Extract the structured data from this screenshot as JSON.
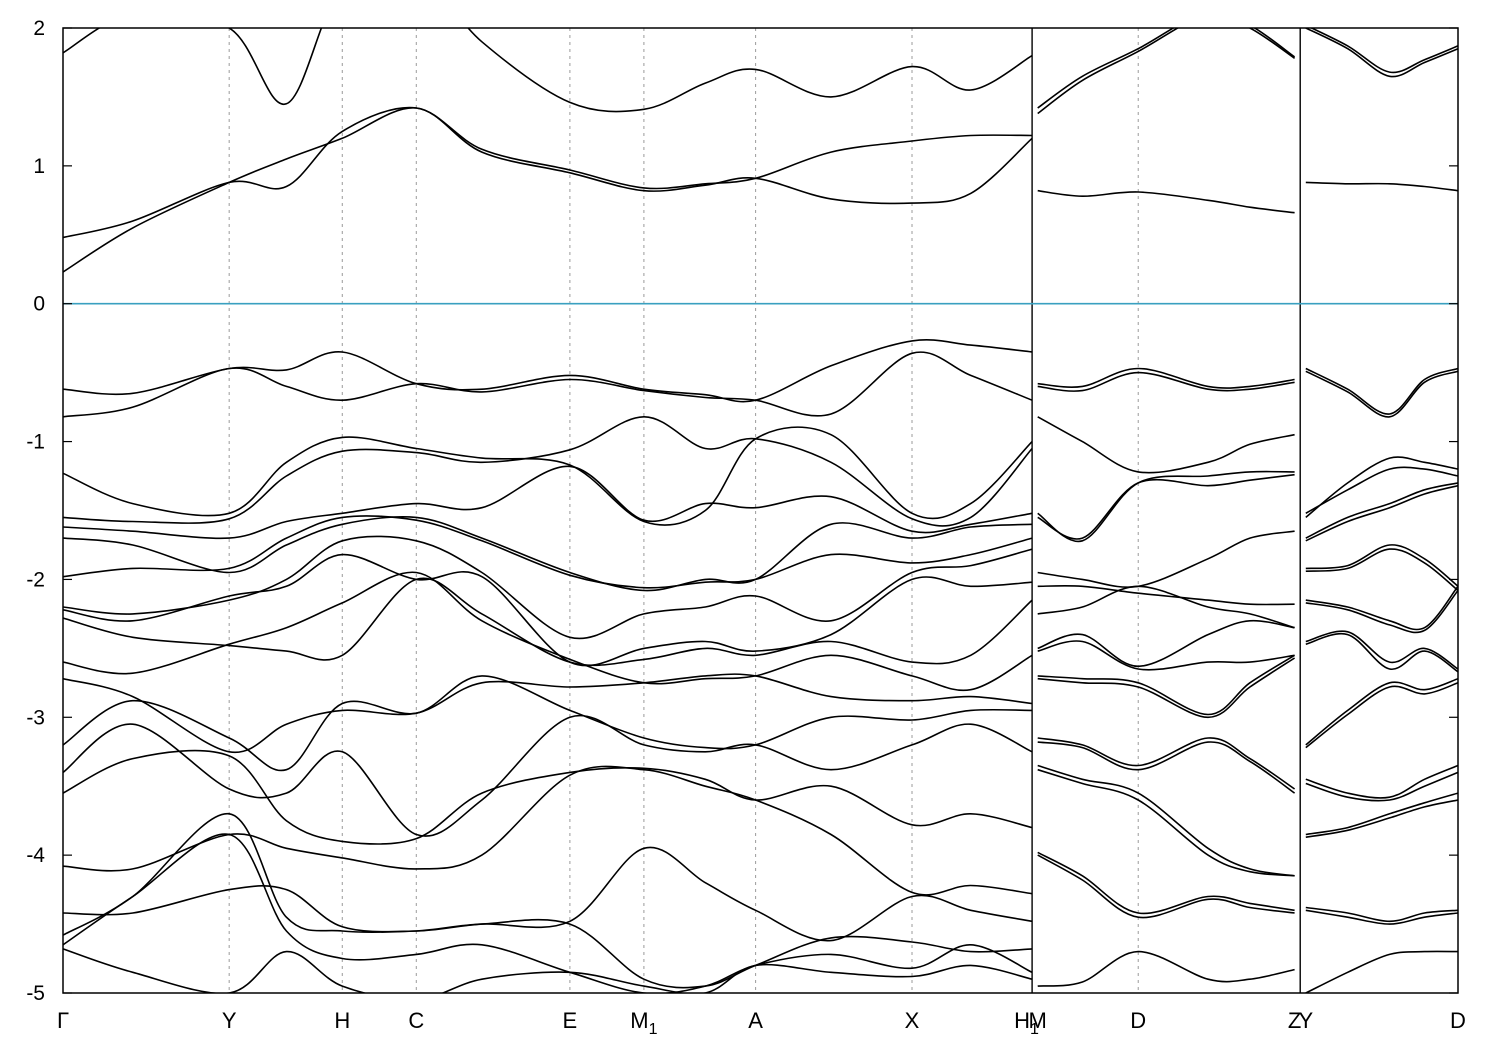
{
  "chart_data": {
    "type": "line",
    "title": "",
    "xlabel": "",
    "ylabel": "",
    "ylim": [
      -5,
      2
    ],
    "y_ticks": [
      -5,
      -4,
      -3,
      -2,
      -1,
      0,
      1,
      2
    ],
    "fermi_level": 0,
    "fermi_color": "#3aa0c0",
    "x_ticks": [
      {
        "label": "Γ",
        "sub": "",
        "x": 0
      },
      {
        "label": "Y",
        "sub": "",
        "x": 1.19
      },
      {
        "label": "H",
        "sub": "",
        "x": 2.0
      },
      {
        "label": "C",
        "sub": "",
        "x": 2.53
      },
      {
        "label": "E",
        "sub": "",
        "x": 3.63
      },
      {
        "label": "M",
        "sub": "1",
        "x": 4.16
      },
      {
        "label": "A",
        "sub": "",
        "x": 4.96
      },
      {
        "label": "X",
        "sub": "",
        "x": 6.08
      },
      {
        "label": "H",
        "sub": "1",
        "x": 6.9
      },
      {
        "label": "M",
        "sub": "",
        "x": 6.98
      },
      {
        "label": "D",
        "sub": "",
        "x": 7.7
      },
      {
        "label": "Z",
        "sub": "",
        "x": 8.82
      },
      {
        "label": "Y",
        "sub": "",
        "x": 8.9
      },
      {
        "label": "D",
        "sub": "",
        "x": 9.99
      }
    ],
    "xlim": [
      0,
      9.99
    ],
    "segment_breaks": [
      6.94,
      8.86
    ],
    "segments": [
      {
        "x": [
          0,
          0.5,
          1.19,
          1.6,
          2.0,
          2.53,
          3.0,
          3.63,
          4.16,
          4.6,
          4.96,
          5.5,
          6.08,
          6.5,
          6.94
        ],
        "series": [
          {
            "values": [
              0.23,
              0.55,
              0.88,
              1.05,
              1.2,
              1.42,
              1.1,
              0.95,
              0.82,
              0.86,
              0.91,
              0.76,
              0.73,
              0.8,
              1.2
            ]
          },
          {
            "values": [
              0.48,
              0.6,
              0.88,
              0.85,
              1.25,
              1.42,
              1.12,
              0.97,
              0.84,
              0.87,
              0.91,
              1.1,
              1.18,
              1.22,
              1.22
            ]
          },
          {
            "values": [
              1.82,
              2.1,
              2.0,
              1.45,
              2.3,
              2.4,
              1.9,
              1.46,
              1.41,
              1.6,
              1.7,
              1.5,
              1.72,
              1.55,
              1.8
            ]
          },
          {
            "values": [
              -0.62,
              -0.65,
              -0.47,
              -0.48,
              -0.35,
              -0.58,
              -0.62,
              -0.52,
              -0.62,
              -0.66,
              -0.7,
              -0.45,
              -0.27,
              -0.3,
              -0.35
            ]
          },
          {
            "values": [
              -0.82,
              -0.75,
              -0.47,
              -0.6,
              -0.7,
              -0.58,
              -0.64,
              -0.55,
              -0.63,
              -0.68,
              -0.7,
              -0.8,
              -0.36,
              -0.52,
              -0.7
            ]
          },
          {
            "values": [
              -1.23,
              -1.45,
              -1.52,
              -1.15,
              -0.97,
              -1.05,
              -1.12,
              -1.17,
              -1.58,
              -1.5,
              -0.98,
              -0.95,
              -1.52,
              -1.45,
              -1.0
            ]
          },
          {
            "values": [
              -1.55,
              -1.58,
              -1.56,
              -1.25,
              -1.07,
              -1.08,
              -1.15,
              -1.06,
              -0.82,
              -1.05,
              -0.98,
              -1.15,
              -1.56,
              -1.55,
              -1.05
            ]
          },
          {
            "values": [
              -1.62,
              -1.65,
              -1.7,
              -1.58,
              -1.52,
              -1.45,
              -1.48,
              -1.18,
              -1.57,
              -1.45,
              -1.48,
              -1.4,
              -1.65,
              -1.6,
              -1.52
            ]
          },
          {
            "values": [
              -1.7,
              -1.75,
              -1.95,
              -1.75,
              -1.6,
              -1.55,
              -1.7,
              -1.95,
              -2.08,
              -2.0,
              -2.0,
              -1.6,
              -1.7,
              -1.62,
              -1.6
            ]
          },
          {
            "values": [
              -1.98,
              -1.92,
              -1.92,
              -1.7,
              -1.55,
              -1.57,
              -1.72,
              -1.97,
              -2.06,
              -2.02,
              -2.0,
              -1.82,
              -1.88,
              -1.82,
              -1.7
            ]
          },
          {
            "values": [
              -2.2,
              -2.25,
              -2.15,
              -2.0,
              -1.72,
              -1.72,
              -1.95,
              -2.42,
              -2.25,
              -2.2,
              -2.12,
              -2.3,
              -1.95,
              -1.9,
              -1.78
            ]
          },
          {
            "values": [
              -2.22,
              -2.3,
              -2.12,
              -2.05,
              -1.82,
              -2.0,
              -1.98,
              -2.6,
              -2.5,
              -2.45,
              -2.52,
              -2.4,
              -2.0,
              -2.05,
              -2.02
            ]
          },
          {
            "values": [
              -2.28,
              -2.42,
              -2.48,
              -2.52,
              -2.55,
              -2.0,
              -2.25,
              -2.6,
              -2.58,
              -2.5,
              -2.55,
              -2.45,
              -2.6,
              -2.55,
              -2.15
            ]
          },
          {
            "values": [
              -2.6,
              -2.68,
              -2.47,
              -2.35,
              -2.17,
              -1.95,
              -2.3,
              -2.58,
              -2.75,
              -2.72,
              -2.7,
              -2.55,
              -2.7,
              -2.8,
              -2.55
            ]
          },
          {
            "values": [
              -2.72,
              -2.85,
              -3.25,
              -3.05,
              -2.95,
              -2.97,
              -2.75,
              -2.78,
              -2.75,
              -2.7,
              -2.7,
              -2.85,
              -2.88,
              -2.85,
              -2.9
            ]
          },
          {
            "values": [
              -3.2,
              -2.88,
              -3.15,
              -3.38,
              -2.9,
              -2.97,
              -2.7,
              -2.95,
              -3.15,
              -3.22,
              -3.2,
              -3.0,
              -3.02,
              -2.95,
              -2.95
            ]
          },
          {
            "values": [
              -3.4,
              -3.05,
              -3.52,
              -3.55,
              -3.25,
              -3.85,
              -3.6,
              -3.0,
              -3.2,
              -3.25,
              -3.2,
              -3.38,
              -3.2,
              -3.05,
              -3.25
            ]
          },
          {
            "values": [
              -3.55,
              -3.3,
              -3.28,
              -3.75,
              -3.9,
              -3.88,
              -3.55,
              -3.4,
              -3.37,
              -3.45,
              -3.6,
              -3.5,
              -3.78,
              -3.7,
              -3.8
            ]
          },
          {
            "values": [
              -4.08,
              -4.1,
              -3.85,
              -3.95,
              -4.02,
              -4.1,
              -4.0,
              -3.42,
              -3.38,
              -3.5,
              -3.6,
              -3.85,
              -4.27,
              -4.22,
              -4.28
            ]
          },
          {
            "values": [
              -4.42,
              -4.42,
              -4.25,
              -4.25,
              -4.52,
              -4.55,
              -4.5,
              -4.48,
              -3.95,
              -4.2,
              -4.4,
              -4.62,
              -4.3,
              -4.4,
              -4.48
            ]
          },
          {
            "values": [
              -4.58,
              -4.3,
              -3.7,
              -4.45,
              -4.55,
              -4.55,
              -4.5,
              -4.5,
              -4.9,
              -4.95,
              -4.8,
              -4.6,
              -4.63,
              -4.7,
              -4.68
            ]
          },
          {
            "values": [
              -4.65,
              -4.3,
              -3.85,
              -4.55,
              -4.75,
              -4.72,
              -4.65,
              -4.85,
              -5.0,
              -4.95,
              -4.8,
              -4.72,
              -4.82,
              -4.65,
              -4.85
            ]
          },
          {
            "values": [
              -4.68,
              -4.85,
              -5.0,
              -4.7,
              -4.95,
              -5.05,
              -4.9,
              -4.85,
              -4.95,
              -5.0,
              -4.8,
              -4.85,
              -4.88,
              -4.8,
              -4.9
            ]
          }
        ]
      },
      {
        "x": [
          6.98,
          7.3,
          7.7,
          8.2,
          8.5,
          8.82
        ],
        "series": [
          {
            "values": [
              0.82,
              0.78,
              0.81,
              0.75,
              0.7,
              0.66
            ]
          },
          {
            "values": [
              1.38,
              1.62,
              1.83,
              2.1,
              2.0,
              1.78
            ]
          },
          {
            "values": [
              1.42,
              1.65,
              1.85,
              2.12,
              2.02,
              1.79
            ]
          },
          {
            "values": [
              -0.58,
              -0.6,
              -0.47,
              -0.6,
              -0.6,
              -0.55
            ]
          },
          {
            "values": [
              -0.6,
              -0.63,
              -0.5,
              -0.62,
              -0.62,
              -0.57
            ]
          },
          {
            "values": [
              -0.82,
              -1.0,
              -1.22,
              -1.15,
              -1.02,
              -0.95
            ]
          },
          {
            "values": [
              -1.52,
              -1.72,
              -1.3,
              -1.25,
              -1.22,
              -1.22
            ]
          },
          {
            "values": [
              -1.55,
              -1.7,
              -1.3,
              -1.32,
              -1.28,
              -1.24
            ]
          },
          {
            "values": [
              -1.95,
              -2.0,
              -2.05,
              -1.85,
              -1.7,
              -1.65
            ]
          },
          {
            "values": [
              -2.05,
              -2.05,
              -2.1,
              -2.15,
              -2.18,
              -2.18
            ]
          },
          {
            "values": [
              -2.25,
              -2.2,
              -2.05,
              -2.2,
              -2.25,
              -2.35
            ]
          },
          {
            "values": [
              -2.5,
              -2.4,
              -2.63,
              -2.4,
              -2.3,
              -2.35
            ]
          },
          {
            "values": [
              -2.52,
              -2.45,
              -2.65,
              -2.6,
              -2.6,
              -2.55
            ]
          },
          {
            "values": [
              -2.7,
              -2.72,
              -2.75,
              -2.98,
              -2.75,
              -2.55
            ]
          },
          {
            "values": [
              -2.72,
              -2.75,
              -2.78,
              -3.0,
              -2.78,
              -2.57
            ]
          },
          {
            "values": [
              -3.15,
              -3.2,
              -3.35,
              -3.15,
              -3.3,
              -3.52
            ]
          },
          {
            "values": [
              -3.18,
              -3.22,
              -3.38,
              -3.18,
              -3.32,
              -3.55
            ]
          },
          {
            "values": [
              -3.35,
              -3.45,
              -3.55,
              -3.95,
              -4.1,
              -4.15
            ]
          },
          {
            "values": [
              -3.38,
              -3.48,
              -3.6,
              -4.0,
              -4.12,
              -4.15
            ]
          },
          {
            "values": [
              -3.98,
              -4.15,
              -4.42,
              -4.3,
              -4.35,
              -4.4
            ]
          },
          {
            "values": [
              -4.0,
              -4.18,
              -4.45,
              -4.32,
              -4.38,
              -4.42
            ]
          },
          {
            "values": [
              -4.95,
              -4.92,
              -4.7,
              -4.9,
              -4.9,
              -4.83
            ]
          }
        ]
      },
      {
        "x": [
          8.9,
          9.2,
          9.5,
          9.75,
          9.99
        ],
        "series": [
          {
            "values": [
              0.88,
              0.87,
              0.87,
              0.85,
              0.82
            ]
          },
          {
            "values": [
              2.0,
              1.85,
              1.65,
              1.75,
              1.85
            ]
          },
          {
            "values": [
              2.02,
              1.87,
              1.68,
              1.77,
              1.87
            ]
          },
          {
            "values": [
              -0.47,
              -0.62,
              -0.8,
              -0.55,
              -0.47
            ]
          },
          {
            "values": [
              -0.49,
              -0.64,
              -0.82,
              -0.57,
              -0.49
            ]
          },
          {
            "values": [
              -1.55,
              -1.3,
              -1.12,
              -1.15,
              -1.2
            ]
          },
          {
            "values": [
              -1.52,
              -1.35,
              -1.2,
              -1.2,
              -1.25
            ]
          },
          {
            "values": [
              -1.7,
              -1.55,
              -1.45,
              -1.35,
              -1.3
            ]
          },
          {
            "values": [
              -1.72,
              -1.58,
              -1.48,
              -1.38,
              -1.32
            ]
          },
          {
            "values": [
              -1.92,
              -1.9,
              -1.75,
              -1.85,
              -2.05
            ]
          },
          {
            "values": [
              -1.94,
              -1.92,
              -1.78,
              -1.88,
              -2.08
            ]
          },
          {
            "values": [
              -2.15,
              -2.2,
              -2.3,
              -2.35,
              -2.05
            ]
          },
          {
            "values": [
              -2.17,
              -2.22,
              -2.33,
              -2.37,
              -2.08
            ]
          },
          {
            "values": [
              -2.45,
              -2.38,
              -2.6,
              -2.5,
              -2.65
            ]
          },
          {
            "values": [
              -2.47,
              -2.4,
              -2.65,
              -2.52,
              -2.67
            ]
          },
          {
            "values": [
              -3.2,
              -2.95,
              -2.75,
              -2.8,
              -2.72
            ]
          },
          {
            "values": [
              -3.22,
              -2.98,
              -2.78,
              -2.83,
              -2.75
            ]
          },
          {
            "values": [
              -3.45,
              -3.55,
              -3.58,
              -3.45,
              -3.35
            ]
          },
          {
            "values": [
              -3.48,
              -3.58,
              -3.6,
              -3.5,
              -3.4
            ]
          },
          {
            "values": [
              -3.85,
              -3.8,
              -3.7,
              -3.62,
              -3.55
            ]
          },
          {
            "values": [
              -3.87,
              -3.82,
              -3.73,
              -3.65,
              -3.6
            ]
          },
          {
            "values": [
              -4.38,
              -4.42,
              -4.48,
              -4.42,
              -4.4
            ]
          },
          {
            "values": [
              -4.4,
              -4.45,
              -4.5,
              -4.45,
              -4.42
            ]
          },
          {
            "values": [
              -5.0,
              -4.85,
              -4.72,
              -4.7,
              -4.7
            ]
          }
        ]
      }
    ],
    "grid": {
      "x": true,
      "y": false
    }
  }
}
